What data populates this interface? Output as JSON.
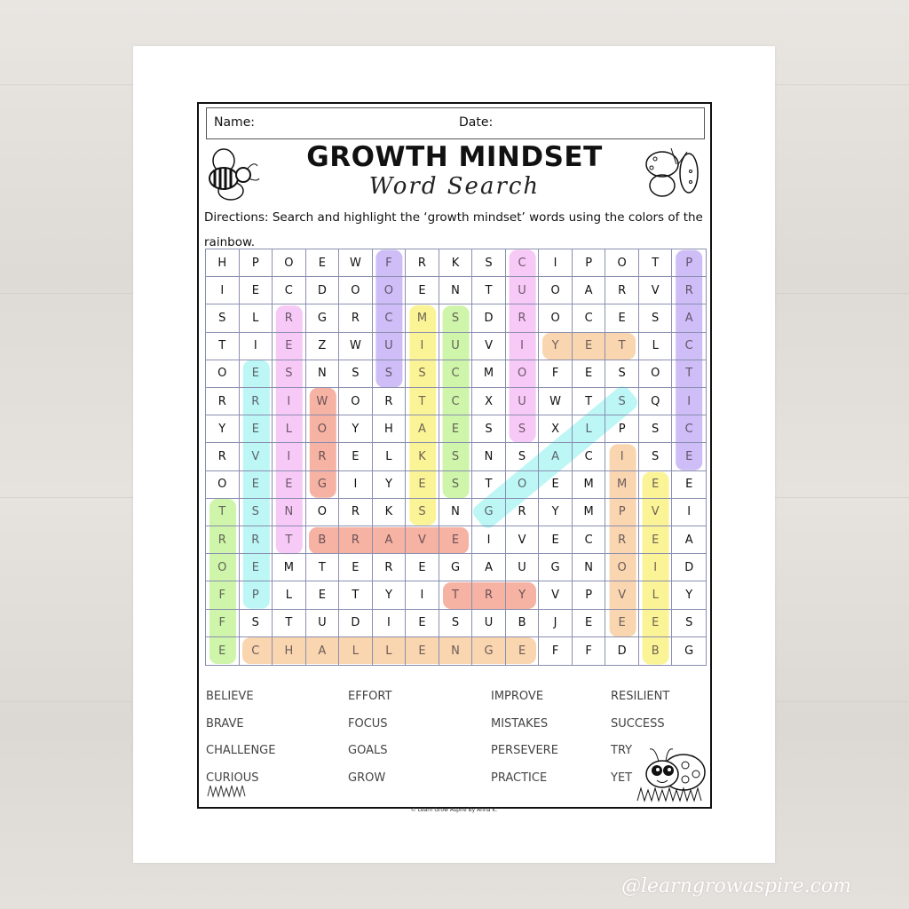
{
  "worksheet": {
    "name_label": "Name:",
    "date_label": "Date:",
    "title": "GROWTH MINDSET",
    "subtitle": "Word Search",
    "directions": "Directions: Search and highlight the ‘growth mindset’ words using the colors of the rainbow."
  },
  "grid": [
    "HPOEWFRKSCIPOTP",
    "IECDOOENTUOARVR",
    "SLRGRCMSDROCESA",
    "TIEZWUIUVIYETLC",
    "OESNSSSCMOFESOT",
    "RRIWORTCXUWTSQI",
    "YELOYHAESSXLPSC",
    "RVIRELKSNSACISE",
    "OEEGIYESTOEMMEE",
    "TSNORKSNGRYMPVI",
    "RRTBRAVEIVECREA",
    "OEMTEREGAUGNOID",
    "FPLETYITRYVPVLY",
    "FSTUDIESUBJEEES",
    "ECHALLENGEFFDBG"
  ],
  "highlights": [
    {
      "word": "FOCUS",
      "color": "#c6b2f4",
      "from": [
        0,
        5
      ],
      "to": [
        4,
        5
      ]
    },
    {
      "word": "CURIOUS",
      "color": "#f6c0f4",
      "from": [
        0,
        9
      ],
      "to": [
        6,
        9
      ]
    },
    {
      "word": "PRACTICE",
      "color": "#c6b2f4",
      "from": [
        0,
        14
      ],
      "to": [
        7,
        14
      ]
    },
    {
      "word": "RESILIENT",
      "color": "#f6c0f4",
      "from": [
        2,
        2
      ],
      "to": [
        10,
        2
      ]
    },
    {
      "word": "MISTAKES",
      "color": "#faf285",
      "from": [
        2,
        6
      ],
      "to": [
        9,
        6
      ]
    },
    {
      "word": "SUCCESS",
      "color": "#c6f39a",
      "from": [
        2,
        7
      ],
      "to": [
        8,
        7
      ]
    },
    {
      "word": "YET",
      "color": "#f8cfa2",
      "from": [
        3,
        10
      ],
      "to": [
        3,
        12
      ]
    },
    {
      "word": "PERSEVERE",
      "color": "#b0f5f3",
      "from": [
        12,
        1
      ],
      "to": [
        4,
        1
      ]
    },
    {
      "word": "GROW",
      "color": "#f5a593",
      "from": [
        8,
        3
      ],
      "to": [
        5,
        3
      ]
    },
    {
      "word": "GOALS",
      "color": "#b0f5f3",
      "from": [
        9,
        8
      ],
      "to": [
        5,
        12
      ]
    },
    {
      "word": "BRAVE",
      "color": "#f5a593",
      "from": [
        10,
        3
      ],
      "to": [
        10,
        7
      ]
    },
    {
      "word": "TRY",
      "color": "#f5a593",
      "from": [
        12,
        7
      ],
      "to": [
        12,
        9
      ]
    },
    {
      "word": "EFFORT",
      "color": "#c6f39a",
      "from": [
        14,
        0
      ],
      "to": [
        9,
        0
      ]
    },
    {
      "word": "CHALLENGE",
      "color": "#f8cfa2",
      "from": [
        14,
        1
      ],
      "to": [
        14,
        9
      ]
    },
    {
      "word": "IMPROVE",
      "color": "#f8cfa2",
      "from": [
        7,
        12
      ],
      "to": [
        13,
        12
      ]
    },
    {
      "word": "BELIEVE",
      "color": "#faf285",
      "from": [
        14,
        13
      ],
      "to": [
        8,
        13
      ]
    }
  ],
  "word_list": [
    [
      "BELIEVE",
      "BRAVE",
      "CHALLENGE",
      "CURIOUS"
    ],
    [
      "EFFORT",
      "FOCUS",
      "GOALS",
      "GROW"
    ],
    [
      "IMPROVE",
      "MISTAKES",
      "PERSEVERE",
      "PRACTICE"
    ],
    [
      "RESILIENT",
      "SUCCESS",
      "TRY",
      "YET"
    ]
  ],
  "footer": "© Learn Grow Aspire By Anna K.",
  "watermark": "@learngrowaspire.com",
  "icons": [
    "bee-icon",
    "butterfly-icon",
    "ladybug-icon",
    "grass-icon"
  ]
}
